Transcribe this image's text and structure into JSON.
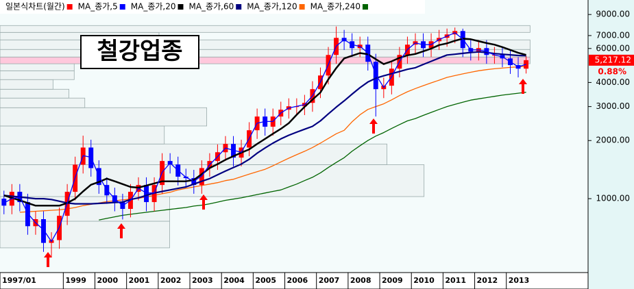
{
  "chart_data": {
    "type": "candlestick",
    "annotation": "철강업종",
    "x": [
      "1997-01",
      "1997-04",
      "1997-07",
      "1997-10",
      "1998-01",
      "1998-04",
      "1998-07",
      "1998-10",
      "1999-01",
      "1999-04",
      "1999-07",
      "1999-10",
      "2000-01",
      "2000-04",
      "2000-07",
      "2000-10",
      "2001-01",
      "2001-04",
      "2001-07",
      "2001-10",
      "2002-01",
      "2002-04",
      "2002-07",
      "2002-10",
      "2003-01",
      "2003-04",
      "2003-07",
      "2003-10",
      "2004-01",
      "2004-04",
      "2004-07",
      "2004-10",
      "2005-01",
      "2005-04",
      "2005-07",
      "2005-10",
      "2006-01",
      "2006-04",
      "2006-07",
      "2006-10",
      "2007-01",
      "2007-04",
      "2007-07",
      "2007-10",
      "2008-01",
      "2008-04",
      "2008-07",
      "2008-10",
      "2009-01",
      "2009-04",
      "2009-07",
      "2009-10",
      "2010-01",
      "2010-04",
      "2010-07",
      "2010-10",
      "2011-01",
      "2011-04",
      "2011-07",
      "2011-10",
      "2012-01",
      "2012-04",
      "2012-07",
      "2012-10",
      "2013-01",
      "2013-04",
      "2013-07"
    ],
    "xlim": [
      "1997-01",
      "2015-08"
    ],
    "xticks": [
      {
        "value": "1997-01",
        "label": "1997/01"
      },
      "1999",
      "2000",
      "2001",
      "2002",
      "2003",
      "2004",
      "2005",
      "2006",
      "2007",
      "2008",
      "2009",
      "2010",
      "2011",
      "2012",
      "2013"
    ],
    "log_y": true,
    "ylim": [
      414,
      10700
    ],
    "yticks": [
      {
        "value": 1000,
        "label": "1000.00"
      },
      {
        "value": 2000,
        "label": "2000.00"
      },
      {
        "value": 3000,
        "label": "3000.00"
      },
      {
        "value": 4000,
        "label": "4000.00"
      },
      {
        "value": 6000,
        "label": "6000.00"
      },
      {
        "value": 7000,
        "label": "7000.00"
      },
      {
        "value": 9000,
        "label": "9000.00"
      }
    ],
    "last_price": {
      "value": 5217.12,
      "label": "5,217.12"
    },
    "change": "0.88%",
    "series": [
      {
        "name": "일본식차트(월간)",
        "type": "candlestick",
        "color": "#ff0000",
        "down_color": "#0000ff",
        "open": [
          1000,
          920,
          1085,
          960,
          720,
          783,
          590,
          610,
          815,
          1085,
          1500,
          1840,
          1440,
          1177,
          1040,
          960,
          885,
          1085,
          1177,
          960,
          1177,
          1567,
          1504,
          1300,
          1278,
          1177,
          1440,
          1567,
          1740,
          1921,
          1632,
          1840,
          2262,
          2664,
          2360,
          2664,
          2890,
          3010,
          3010,
          3136,
          3693,
          4347,
          5554,
          6810,
          6539,
          6026,
          6280,
          5119,
          3693,
          3850,
          4717,
          5554,
          6280,
          6539,
          6026,
          6539,
          6810,
          7096,
          7390,
          6026,
          5780,
          6026,
          5554,
          5554,
          5330,
          4920,
          4717
        ],
        "high": [
          1100,
          1190,
          1190,
          1060,
          860,
          860,
          670,
          900,
          1190,
          1650,
          2120,
          2020,
          1580,
          1290,
          1140,
          1060,
          1190,
          1290,
          1290,
          1290,
          1720,
          1720,
          1650,
          1430,
          1410,
          1580,
          1720,
          1910,
          2110,
          2110,
          2020,
          2490,
          2930,
          2930,
          2930,
          3180,
          3310,
          3310,
          3450,
          4060,
          4780,
          6110,
          7800,
          7490,
          7190,
          6910,
          6910,
          5630,
          4240,
          5190,
          6110,
          6910,
          7190,
          7190,
          7190,
          7490,
          7610,
          7700,
          7600,
          6630,
          6630,
          6630,
          6110,
          6110,
          5860,
          5410,
          5500
        ],
        "low": [
          830,
          830,
          860,
          650,
          650,
          530,
          500,
          550,
          730,
          980,
          1350,
          1300,
          1060,
          940,
          860,
          780,
          800,
          980,
          860,
          860,
          1060,
          1350,
          1170,
          1150,
          1060,
          1060,
          1300,
          1410,
          1570,
          1470,
          1470,
          1660,
          2040,
          2120,
          2120,
          2400,
          2600,
          2710,
          2710,
          2820,
          3320,
          3910,
          5000,
          5890,
          5420,
          5420,
          4610,
          2664,
          3320,
          3470,
          4250,
          5000,
          5650,
          5420,
          5420,
          5890,
          6130,
          6390,
          5420,
          5200,
          5200,
          5000,
          5000,
          4800,
          4430,
          4250,
          4450
        ],
        "close": [
          920,
          1085,
          960,
          720,
          783,
          590,
          610,
          815,
          1085,
          1500,
          1840,
          1440,
          1177,
          1040,
          960,
          885,
          1085,
          1177,
          960,
          1177,
          1567,
          1504,
          1300,
          1278,
          1177,
          1440,
          1567,
          1740,
          1921,
          1632,
          1840,
          2262,
          2664,
          2360,
          2664,
          2890,
          3010,
          3010,
          3136,
          3693,
          4347,
          5554,
          6810,
          6539,
          6026,
          6280,
          5119,
          3693,
          3850,
          4717,
          5554,
          6280,
          6539,
          6026,
          6539,
          6810,
          7096,
          7390,
          6026,
          5780,
          6026,
          5554,
          5554,
          5330,
          4920,
          4717,
          5217.12
        ]
      },
      {
        "name": "MA_종가,5",
        "type": "line",
        "color": "#0000ff",
        "values": [
          950,
          1000,
          1020,
          840,
          750,
          690,
          600,
          710,
          950,
          1290,
          1670,
          1640,
          1310,
          1110,
          1000,
          920,
          980,
          1130,
          1070,
          1070,
          1370,
          1530,
          1400,
          1290,
          1230,
          1310,
          1500,
          1650,
          1830,
          1780,
          1740,
          2050,
          2460,
          2510,
          2510,
          2780,
          2950,
          3010,
          3070,
          3410,
          4020,
          4950,
          6180,
          6670,
          6280,
          6150,
          5700,
          4400,
          3770,
          4280,
          5140,
          5920,
          6410,
          6280,
          6280,
          6670,
          6950,
          7240,
          6710,
          5900,
          5900,
          5790,
          5550,
          5440,
          5120,
          4820,
          4970
        ]
      },
      {
        "name": "MA_종가,20",
        "type": "line",
        "color": "#000000",
        "values": [
          1040,
          1010,
          980,
          950,
          920,
          920,
          920,
          920,
          950,
          1000,
          1090,
          1180,
          1220,
          1270,
          1230,
          1190,
          1150,
          1140,
          1170,
          1200,
          1230,
          1230,
          1230,
          1230,
          1250,
          1340,
          1440,
          1510,
          1590,
          1660,
          1730,
          1800,
          1920,
          2040,
          2170,
          2300,
          2460,
          2720,
          2990,
          3260,
          3550,
          4150,
          4750,
          5330,
          5500,
          5680,
          5600,
          5280,
          4980,
          5150,
          5370,
          5530,
          5620,
          5800,
          5990,
          6250,
          6380,
          6580,
          6750,
          6700,
          6550,
          6400,
          6280,
          6100,
          5900,
          5700,
          5554
        ]
      },
      {
        "name": "MA_종가,60",
        "type": "line",
        "color": "#000080",
        "values": [
          1040,
          1030,
          1020,
          1010,
          1000,
          1000,
          990,
          970,
          950,
          940,
          940,
          940,
          945,
          950,
          955,
          960,
          990,
          1010,
          1040,
          1070,
          1090,
          1110,
          1130,
          1150,
          1190,
          1230,
          1270,
          1330,
          1390,
          1450,
          1510,
          1600,
          1720,
          1830,
          1940,
          2040,
          2130,
          2210,
          2290,
          2370,
          2530,
          2750,
          2980,
          3210,
          3480,
          3760,
          4020,
          4210,
          4330,
          4440,
          4560,
          4680,
          4770,
          4960,
          5150,
          5350,
          5550,
          5600,
          5660,
          5720,
          5760,
          5720,
          5650,
          5600,
          5560,
          5520,
          5500
        ]
      },
      {
        "name": "MA_종가,120",
        "type": "line",
        "color": "#ff6600",
        "values": [
          null,
          null,
          850,
          855,
          860,
          865,
          870,
          875,
          885,
          900,
          920,
          935,
          950,
          965,
          975,
          985,
          995,
          1005,
          1020,
          1040,
          1060,
          1080,
          1110,
          1130,
          1150,
          1170,
          1190,
          1210,
          1240,
          1260,
          1300,
          1340,
          1380,
          1420,
          1480,
          1550,
          1620,
          1690,
          1760,
          1840,
          1940,
          2050,
          2170,
          2260,
          2500,
          2720,
          2900,
          3000,
          3100,
          3250,
          3420,
          3580,
          3720,
          3850,
          3980,
          4110,
          4250,
          4340,
          4430,
          4520,
          4600,
          4660,
          4710,
          4750,
          4790,
          4820,
          4850
        ]
      },
      {
        "name": "MA_종가,240",
        "type": "line",
        "color": "#006400",
        "values": [
          null,
          null,
          null,
          null,
          null,
          null,
          null,
          null,
          null,
          null,
          null,
          null,
          775,
          790,
          805,
          820,
          830,
          840,
          850,
          860,
          870,
          880,
          890,
          900,
          915,
          925,
          940,
          960,
          980,
          995,
          1010,
          1030,
          1050,
          1070,
          1090,
          1110,
          1150,
          1190,
          1240,
          1290,
          1360,
          1450,
          1540,
          1630,
          1760,
          1880,
          2000,
          2110,
          2200,
          2310,
          2420,
          2530,
          2600,
          2700,
          2800,
          2900,
          3000,
          3080,
          3160,
          3240,
          3290,
          3340,
          3390,
          3440,
          3480,
          3520,
          3560
        ]
      }
    ],
    "volume_by_price": {
      "bins": [
        556,
        764,
        1025,
        1500,
        1920,
        2380,
        2960,
        3320,
        3690,
        4140,
        4600,
        5000,
        5420,
        5930,
        6650,
        7270,
        7890
      ],
      "values": [
        32,
        32,
        80,
        73,
        31,
        39,
        16,
        13,
        10,
        14,
        14,
        100,
        100,
        100,
        30,
        100
      ],
      "color": "#eef4f4",
      "highlight_color": "#ffc8dc"
    }
  }
}
